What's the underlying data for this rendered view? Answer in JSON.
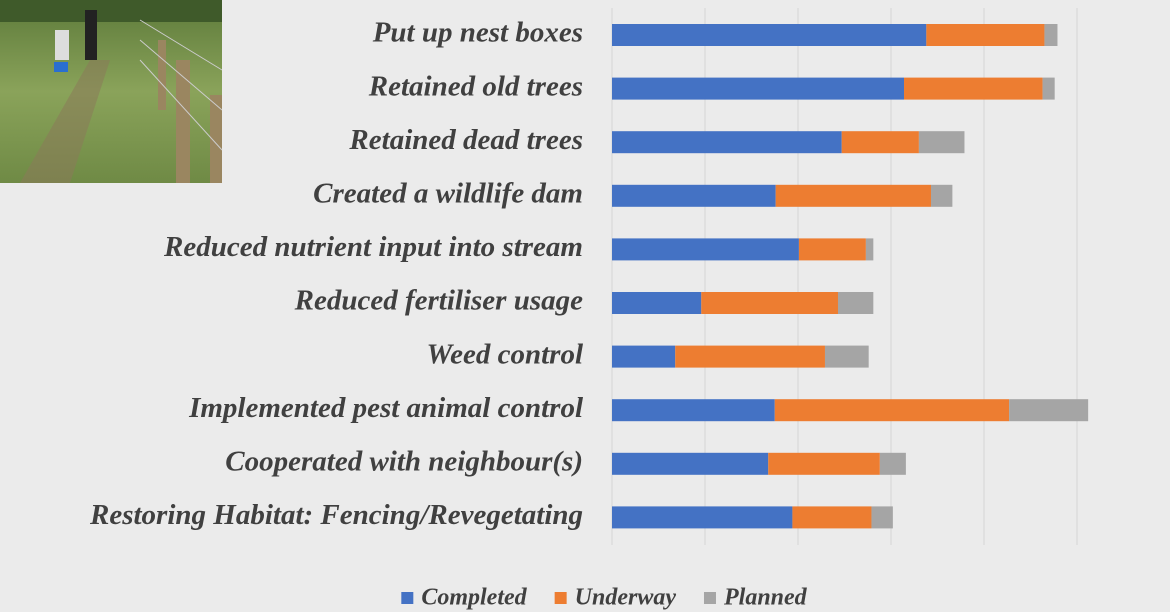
{
  "chart_data": {
    "type": "stacked_barh",
    "categories": [
      "Put up nest boxes",
      "Retained old trees",
      "Retained dead trees",
      "Created a wildlife dam",
      "Reduced nutrient input into stream",
      "Reduced fertiliser usage",
      "Weed control",
      "Implemented pest animal control",
      "Cooperated with neighbour(s)",
      "Restoring Habitat: Fencing/Revegetating"
    ],
    "series": [
      {
        "name": "Completed",
        "color": "#4472c4",
        "values": [
          33.8,
          31.4,
          24.7,
          17.6,
          20.1,
          9.6,
          6.8,
          17.5,
          16.8,
          19.4
        ]
      },
      {
        "name": "Underway",
        "color": "#ed7d31",
        "values": [
          12.7,
          14.9,
          8.3,
          16.7,
          7.2,
          14.7,
          16.1,
          25.2,
          12.0,
          8.5
        ]
      },
      {
        "name": "Planned",
        "color": "#a5a5a5",
        "values": [
          1.4,
          1.3,
          4.9,
          2.3,
          0.8,
          3.8,
          4.7,
          8.5,
          2.8,
          2.3
        ]
      }
    ],
    "xlim": [
      0,
      52
    ],
    "xticks": [
      0,
      10,
      20,
      30,
      40,
      50
    ],
    "grid": true,
    "legend": "bottom"
  }
}
